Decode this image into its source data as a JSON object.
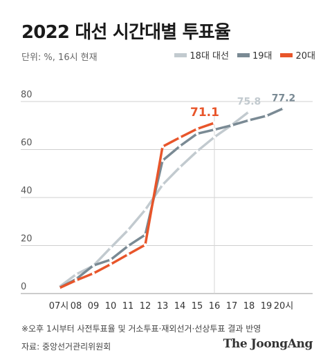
{
  "header": {
    "title": "2022 대선 시간대별 투표율",
    "unit_note": "단위: %, 16시 현재"
  },
  "footer": {
    "footnote": "※오후 1시부터 사전투표율 및 거소투표·재외선거·선상투표 결과 반영",
    "source": "자료: 중앙선거관리위원회",
    "brand": "The JoongAng"
  },
  "colors": {
    "series_18": "#c2cacf",
    "series_19": "#7a8a94",
    "series_20": "#e8552a",
    "grid": "#cfcfcf",
    "axis_text": "#555555"
  },
  "chart_data": {
    "type": "line",
    "title": "2022 대선 시간대별 투표율",
    "x": [
      "07시",
      "08",
      "09",
      "10",
      "11",
      "12",
      "13",
      "14",
      "15",
      "16",
      "17",
      "18",
      "19",
      "20시"
    ],
    "ylim": [
      0,
      80
    ],
    "yticks": [
      0,
      20,
      40,
      60,
      80
    ],
    "grid": true,
    "legend_position": "top-right",
    "reference_line_at": "16",
    "series": [
      {
        "name": "18대 대선",
        "color": "#c2cacf",
        "values": [
          2.6,
          8.0,
          11.6,
          19.1,
          26.4,
          34.9,
          45.3,
          52.6,
          59.3,
          65.2,
          70.2,
          75.8,
          null,
          null
        ],
        "end_label": "75.8"
      },
      {
        "name": "19대",
        "color": "#7a8a94",
        "values": [
          2.3,
          6.0,
          11.7,
          14.1,
          19.8,
          24.5,
          55.4,
          61.4,
          66.6,
          68.3,
          70.1,
          72.2,
          74.0,
          77.2
        ],
        "end_label": "77.2"
      },
      {
        "name": "20대",
        "color": "#e8552a",
        "values": [
          2.2,
          5.5,
          8.4,
          12.2,
          16.3,
          20.3,
          61.2,
          65.0,
          68.6,
          71.1,
          null,
          null,
          null,
          null
        ],
        "end_label": "71.1"
      }
    ]
  }
}
